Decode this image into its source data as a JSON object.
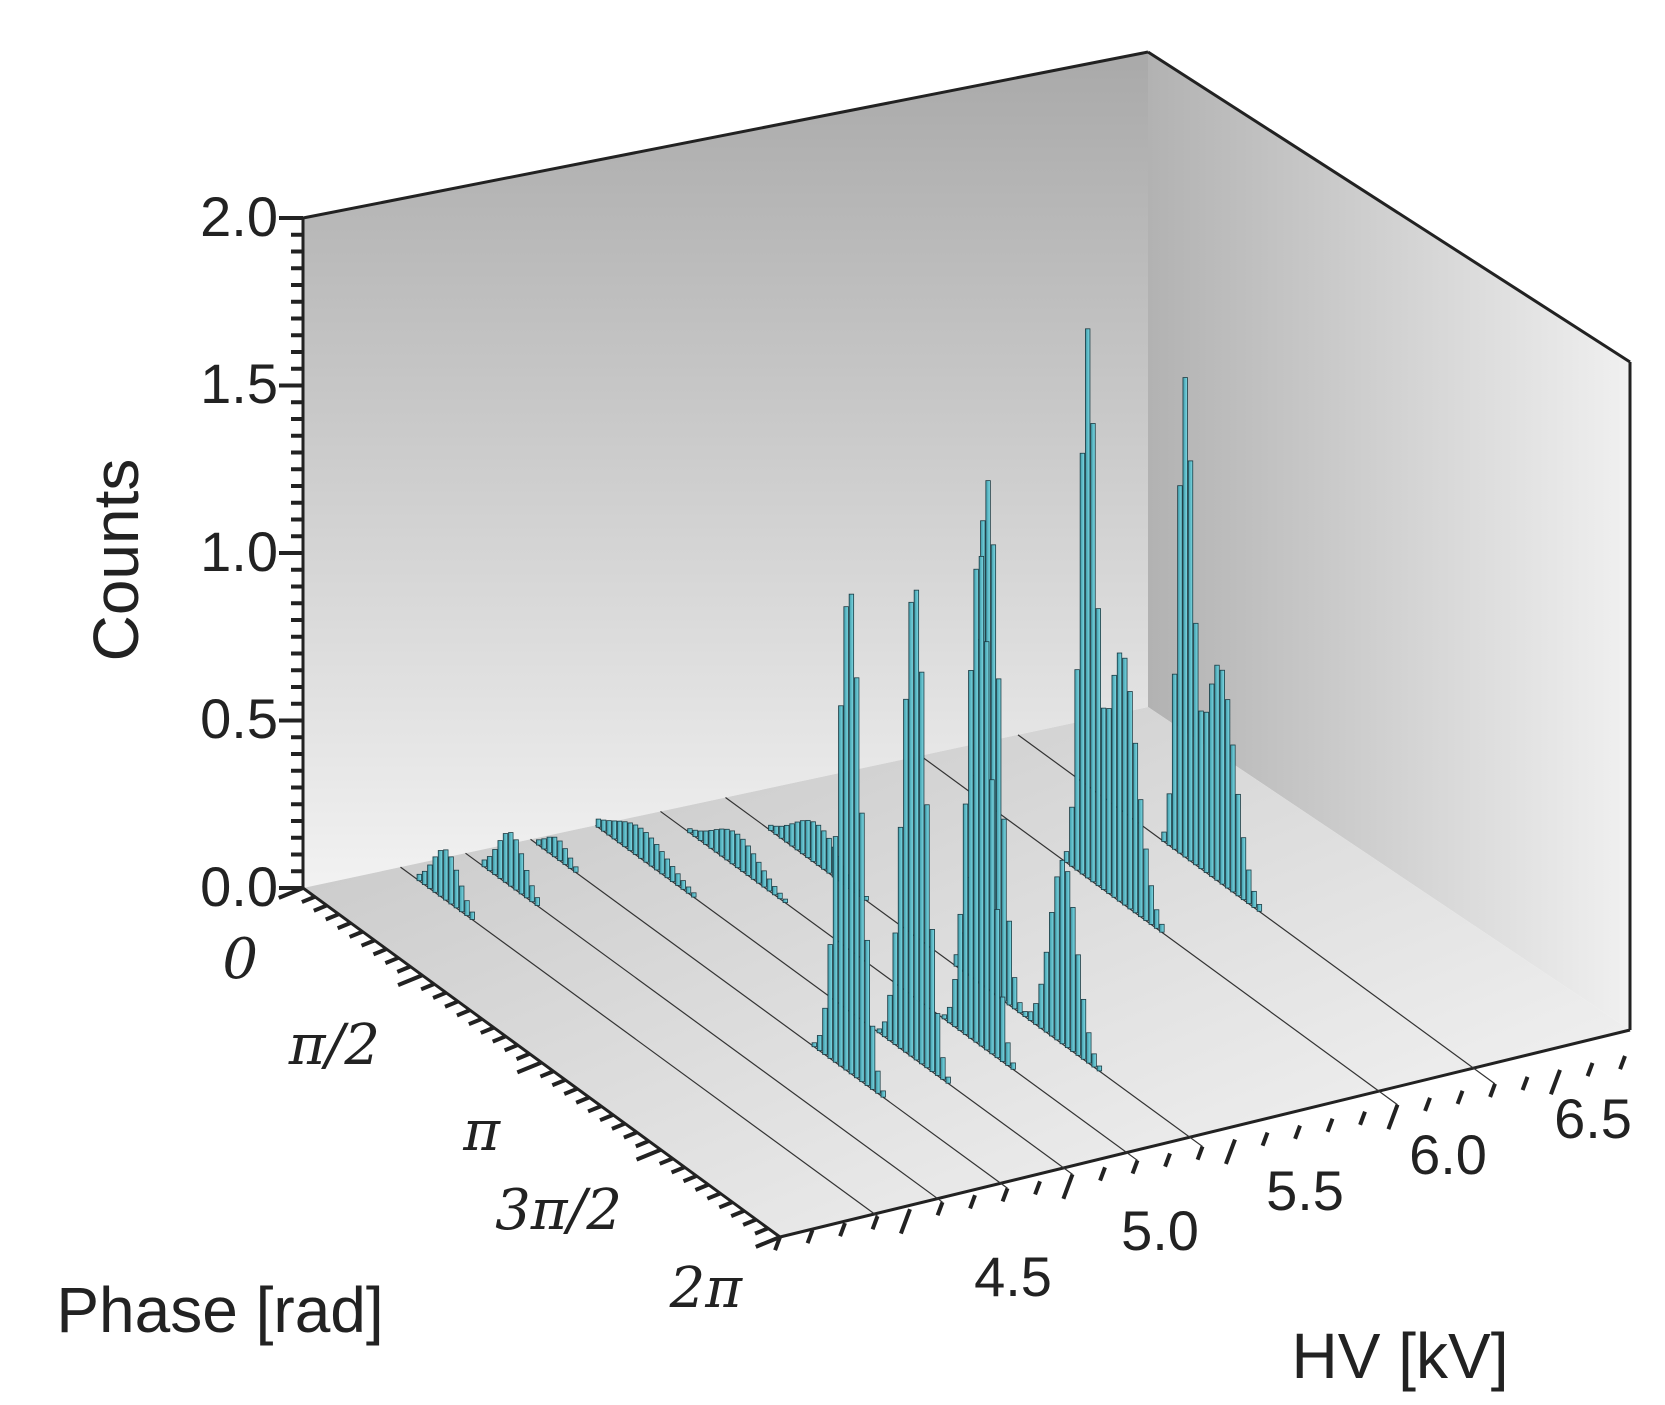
{
  "chart_data": {
    "type": "bar3d",
    "title": "",
    "zlabel": "Counts",
    "xlabel": "HV [kV]",
    "ylabel": "Phase [rad]",
    "zlim": [
      0,
      2.0
    ],
    "z_ticks": [
      "0.0",
      "0.5",
      "1.0",
      "1.5",
      "2.0"
    ],
    "z_tick_values": [
      0,
      0.5,
      1.0,
      1.5,
      2.0
    ],
    "hv_ticks": [
      "4.5",
      "5.0",
      "5.5",
      "6.0",
      "6.5"
    ],
    "hv_tick_values": [
      4.5,
      5.0,
      5.5,
      6.0,
      6.5
    ],
    "hv_range": [
      4.1,
      6.7
    ],
    "phase_ticks": [
      "0",
      "π/2",
      "π",
      "3π/2",
      "2π"
    ],
    "phase_tick_values": [
      0,
      1.5708,
      3.1416,
      4.7124,
      6.2832
    ],
    "phase_range": [
      0,
      6.2832
    ],
    "series": [
      {
        "hv": 4.4,
        "peaks": [
          {
            "phase": 0.6,
            "height": 0.15,
            "width": 0.35
          }
        ]
      },
      {
        "hv": 4.6,
        "peaks": [
          {
            "phase": 0.6,
            "height": 0.16,
            "width": 0.35
          }
        ]
      },
      {
        "hv": 4.8,
        "peaks": [
          {
            "phase": 0.35,
            "height": 0.06,
            "width": 0.3
          },
          {
            "phase": 4.2,
            "height": 1.45,
            "width": 0.3
          }
        ]
      },
      {
        "hv": 5.0,
        "peaks": [
          {
            "phase": 0.6,
            "height": 0.09,
            "width": 0.7
          },
          {
            "phase": 4.2,
            "height": 1.42,
            "width": 0.3
          }
        ]
      },
      {
        "hv": 5.2,
        "peaks": [
          {
            "phase": 1.0,
            "height": 0.1,
            "width": 0.6
          },
          {
            "phase": 4.2,
            "height": 1.48,
            "width": 0.3
          }
        ]
      },
      {
        "hv": 5.4,
        "peaks": [
          {
            "phase": 1.2,
            "height": 0.12,
            "width": 0.6
          },
          {
            "phase": 3.45,
            "height": 1.52,
            "width": 0.3
          },
          {
            "phase": 4.45,
            "height": 0.55,
            "width": 0.35
          }
        ]
      },
      {
        "hv": 6.0,
        "peaks": [
          {
            "phase": 2.2,
            "height": 1.58,
            "width": 0.2
          },
          {
            "phase": 2.65,
            "height": 0.75,
            "width": 0.4
          }
        ]
      },
      {
        "hv": 6.3,
        "peaks": [
          {
            "phase": 2.2,
            "height": 1.38,
            "width": 0.2
          },
          {
            "phase": 2.65,
            "height": 0.65,
            "width": 0.4
          }
        ]
      }
    ]
  }
}
